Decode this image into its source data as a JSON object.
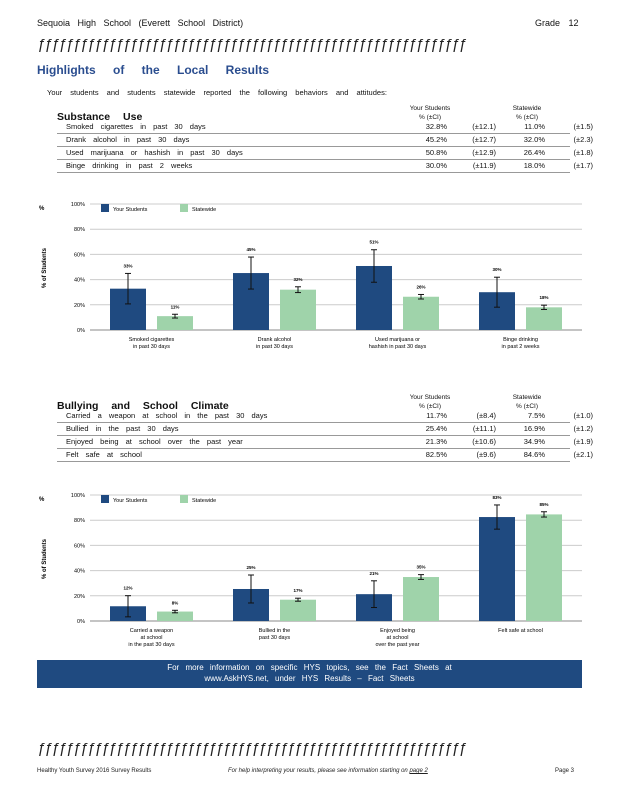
{
  "header": {
    "school": "Sequoia High School (Everett School District)",
    "grade": "Grade 12"
  },
  "decor": {
    "rule": "ƒƒƒƒƒƒƒƒƒƒƒƒƒƒƒƒƒƒƒƒƒƒƒƒƒƒƒƒƒƒƒƒƒƒƒƒƒƒƒƒƒƒƒƒƒƒƒƒƒƒƒƒƒƒƒƒƒƒƒƒƒƒƒƒƒƒƒƒƒƒƒƒƒƒƒƒƒƒ"
  },
  "title": "Highlights of the Local Results",
  "intro": "Your students and students statewide reported the following behaviors and attitudes:",
  "columns": {
    "your": "Your Students",
    "statewide": "Statewide",
    "unit": "% (±CI)"
  },
  "colors": {
    "your": "#1f4a80",
    "statewide": "#9fd3aa"
  },
  "sections": [
    {
      "title": "Substance Use",
      "rows": [
        {
          "label": "Smoked cigarettes in past 30 days",
          "your": "32.8%",
          "your_ci": "(±12.1)",
          "state": "11.0%",
          "state_ci": "(±1.5)"
        },
        {
          "label": "Drank alcohol in past 30 days",
          "your": "45.2%",
          "your_ci": "(±12.7)",
          "state": "32.0%",
          "state_ci": "(±2.3)"
        },
        {
          "label": "Used marijuana or hashish in past 30 days",
          "your": "50.8%",
          "your_ci": "(±12.9)",
          "state": "26.4%",
          "state_ci": "(±1.8)"
        },
        {
          "label": "Binge drinking in past 2 weeks",
          "your": "30.0%",
          "your_ci": "(±11.9)",
          "state": "18.0%",
          "state_ci": "(±1.7)"
        }
      ]
    },
    {
      "title": "Bullying and School Climate",
      "rows": [
        {
          "label": "Carried a weapon at school in the past 30 days",
          "your": "11.7%",
          "your_ci": "(±8.4)",
          "state": "7.5%",
          "state_ci": "(±1.0)"
        },
        {
          "label": "Bullied in the past 30 days",
          "your": "25.4%",
          "your_ci": "(±11.1)",
          "state": "16.9%",
          "state_ci": "(±1.2)"
        },
        {
          "label": "Enjoyed being at school over the past year",
          "your": "21.3%",
          "your_ci": "(±10.6)",
          "state": "34.9%",
          "state_ci": "(±1.9)"
        },
        {
          "label": "Felt safe at school",
          "your": "82.5%",
          "your_ci": "(±9.6)",
          "state": "84.6%",
          "state_ci": "(±2.1)"
        }
      ]
    }
  ],
  "chart_data": [
    {
      "type": "bar",
      "ylabel": "% of Students",
      "y_marker": "%",
      "ylim": [
        0,
        100
      ],
      "yticks": [
        "0%",
        "20%",
        "40%",
        "60%",
        "80%",
        "100%"
      ],
      "legend": "top-left",
      "categories": [
        [
          "Smoked cigarettes",
          "in past 30 days"
        ],
        [
          "Drank alcohol",
          "in past 30 days"
        ],
        [
          "Used marijuana or",
          "hashish in past 30 days"
        ],
        [
          "Binge drinking",
          "in past 2 weeks"
        ]
      ],
      "series": [
        {
          "name": "Your Students",
          "values": [
            32.8,
            45.2,
            50.8,
            30.0
          ],
          "ci": [
            12.1,
            12.7,
            12.9,
            11.9
          ],
          "labels": [
            "33%",
            "45%",
            "51%",
            "30%"
          ]
        },
        {
          "name": "Statewide",
          "values": [
            11.0,
            32.0,
            26.4,
            18.0
          ],
          "ci": [
            1.5,
            2.3,
            1.8,
            1.7
          ],
          "labels": [
            "11%",
            "32%",
            "26%",
            "18%"
          ]
        }
      ]
    },
    {
      "type": "bar",
      "ylabel": "% of Students",
      "y_marker": "%",
      "ylim": [
        0,
        100
      ],
      "yticks": [
        "0%",
        "20%",
        "40%",
        "60%",
        "80%",
        "100%"
      ],
      "legend": "top-left",
      "categories": [
        [
          "Carried a weapon",
          "at school",
          "in the past 30 days"
        ],
        [
          "Bullied in the",
          "past 30 days"
        ],
        [
          "Enjoyed being",
          "at school",
          "over the past year"
        ],
        [
          "Felt safe at school"
        ]
      ],
      "series": [
        {
          "name": "Your Students",
          "values": [
            11.7,
            25.4,
            21.3,
            82.5
          ],
          "ci": [
            8.4,
            11.1,
            10.6,
            9.6
          ],
          "labels": [
            "12%",
            "25%",
            "21%",
            "83%"
          ]
        },
        {
          "name": "Statewide",
          "values": [
            7.5,
            16.9,
            34.9,
            84.6
          ],
          "ci": [
            1.0,
            1.2,
            1.9,
            2.1
          ],
          "labels": [
            "8%",
            "17%",
            "35%",
            "85%"
          ]
        }
      ]
    }
  ],
  "banner": {
    "line1": "For more information on specific HYS topics, see the Fact Sheets at",
    "line2": "www.AskHYS.net, under HYS Results – Fact Sheets"
  },
  "footer": {
    "left": "Healthy Youth Survey 2016 Survey Results",
    "middle_prefix": "For help interpreting your results, please see information starting on",
    "middle_link": "page 2",
    "right": "Page 3"
  }
}
